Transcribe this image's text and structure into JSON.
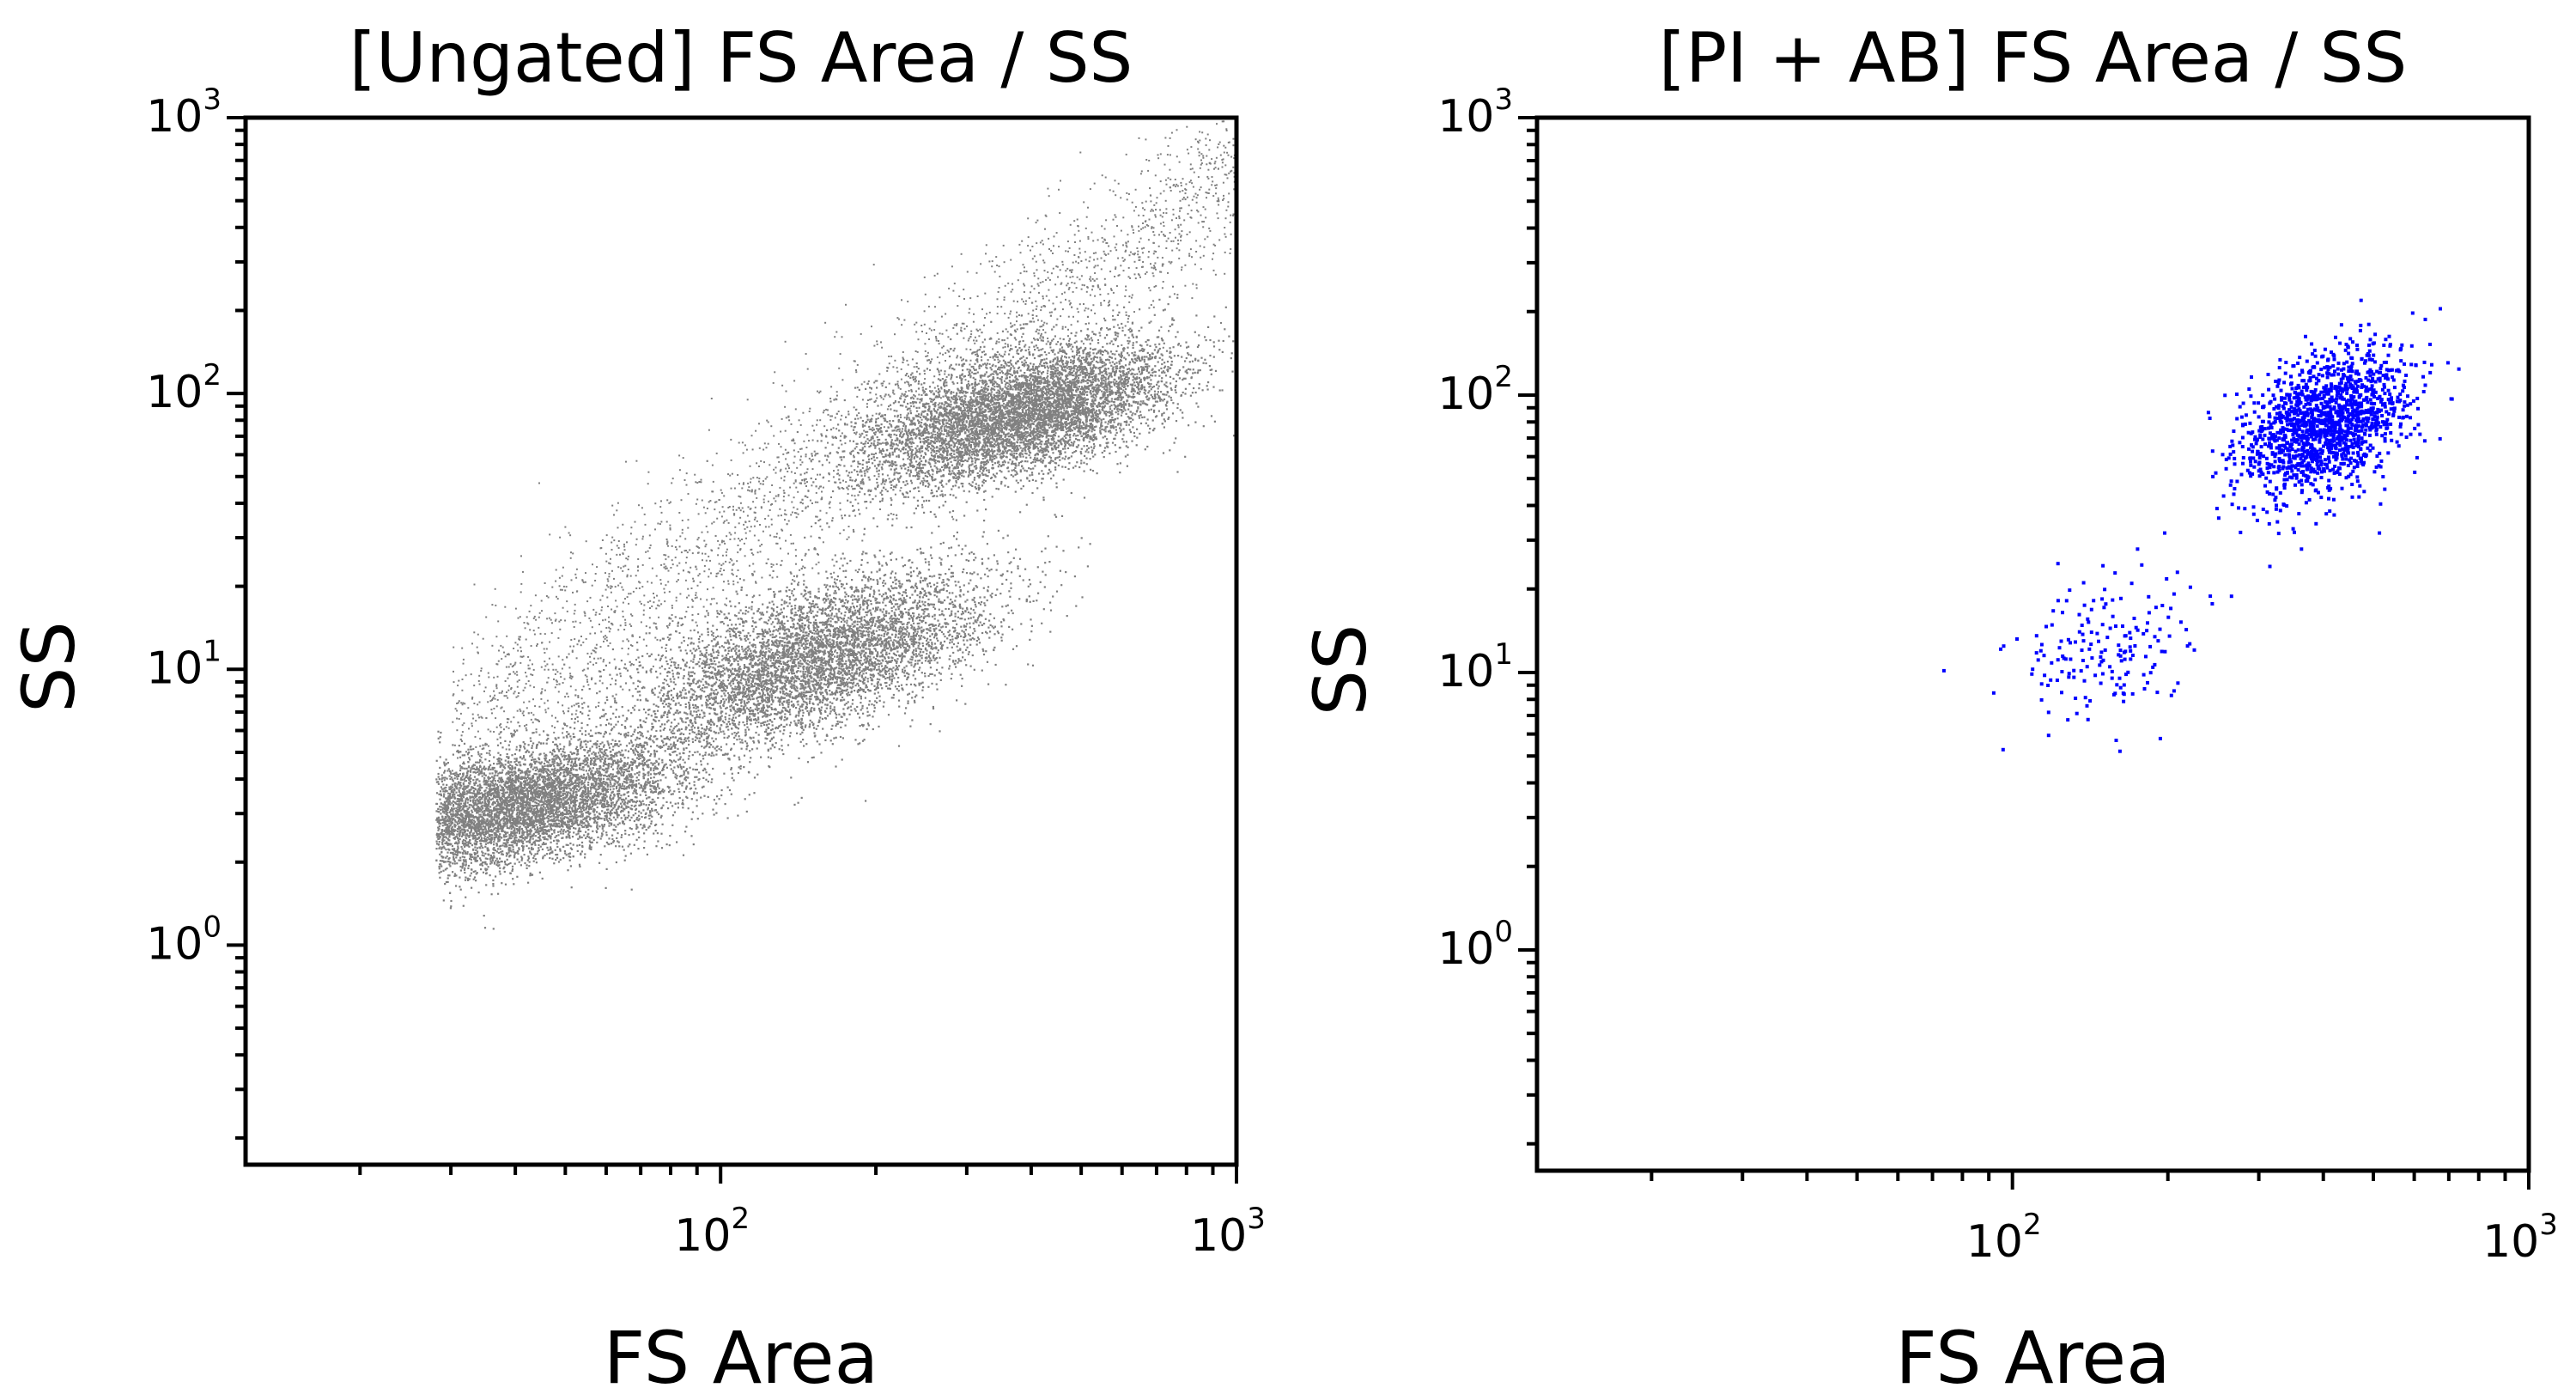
{
  "chart_data": [
    {
      "type": "scatter",
      "title": "[Ungated] FS Area / SS",
      "xlabel": "FS Area",
      "ylabel": "SS",
      "x_scale": "log",
      "y_scale": "log",
      "xlim": [
        12,
        1000
      ],
      "ylim": [
        0.16,
        1000
      ],
      "x_ticks": [
        {
          "base": "10",
          "exp": "2",
          "value": 100
        },
        {
          "base": "10",
          "exp": "3",
          "value": 1000
        }
      ],
      "y_ticks": [
        {
          "base": "10",
          "exp": "0",
          "value": 1
        },
        {
          "base": "10",
          "exp": "1",
          "value": 10
        },
        {
          "base": "10",
          "exp": "2",
          "value": 100
        },
        {
          "base": "10",
          "exp": "3",
          "value": 1000
        }
      ],
      "grid": false,
      "point_color": "#808080",
      "populations": [
        {
          "fs_center": 40,
          "ss_center": 3.2,
          "relative_density": 0.35
        },
        {
          "fs_center": 150,
          "ss_center": 11,
          "relative_density": 0.3
        },
        {
          "fs_center": 380,
          "ss_center": 85,
          "relative_density": 0.35
        }
      ]
    },
    {
      "type": "scatter",
      "title": "[PI + AB] FS Area / SS",
      "xlabel": "FS Area",
      "ylabel": "SS",
      "x_scale": "log",
      "y_scale": "log",
      "xlim": [
        12,
        1000
      ],
      "ylim": [
        0.16,
        1000
      ],
      "x_ticks": [
        {
          "base": "10",
          "exp": "2",
          "value": 100
        },
        {
          "base": "10",
          "exp": "3",
          "value": 1000
        }
      ],
      "y_ticks": [
        {
          "base": "10",
          "exp": "0",
          "value": 1
        },
        {
          "base": "10",
          "exp": "1",
          "value": 10
        },
        {
          "base": "10",
          "exp": "2",
          "value": 100
        },
        {
          "base": "10",
          "exp": "3",
          "value": 1000
        }
      ],
      "grid": false,
      "point_color": "#0000ff",
      "populations": [
        {
          "fs_center": 400,
          "ss_center": 80,
          "relative_density": 0.9
        },
        {
          "fs_center": 150,
          "ss_center": 12,
          "relative_density": 0.1
        }
      ]
    }
  ]
}
